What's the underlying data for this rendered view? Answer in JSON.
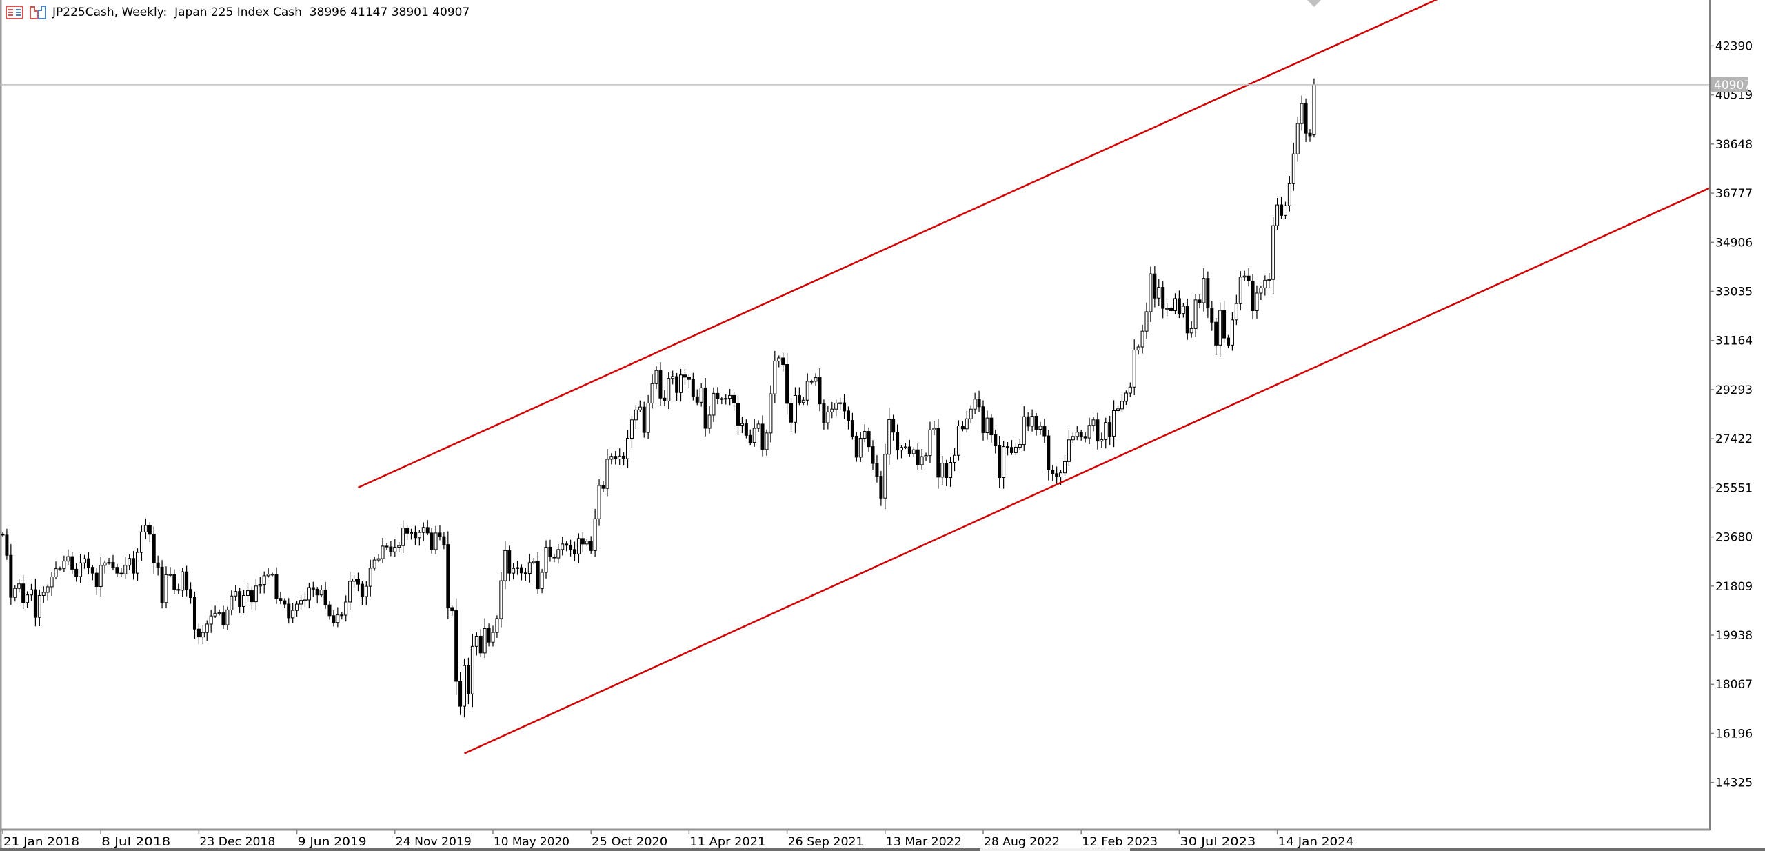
{
  "header": {
    "title": "JP225Cash, Weekly:  Japan 225 Index Cash",
    "open": "38996",
    "high": "41147",
    "low": "38901",
    "close": "40907",
    "icons": [
      "list-icon",
      "chart-window-icon"
    ]
  },
  "colors": {
    "background": "#ffffff",
    "bull_body": "#ffffff",
    "bear_body": "#000000",
    "candle_outline": "#000000",
    "trendline": "#d40000",
    "price_line": "#c0c0c0",
    "price_label_bg": "#b4b4b4",
    "axis": "#808080"
  },
  "chart_data": {
    "type": "candlestick",
    "symbol": "JP225Cash",
    "timeframe": "Weekly",
    "first_bar_date": "2018-01-21",
    "interval_days": 7,
    "ylim": [
      12530,
      44135
    ],
    "grid": false,
    "y_ticks": [
      "42390",
      "40519",
      "38648",
      "36777",
      "34906",
      "33035",
      "31164",
      "29293",
      "27422",
      "25551",
      "23680",
      "21809",
      "19938",
      "18067",
      "16196",
      "14325"
    ],
    "x_ticks": [
      {
        "label": "21 Jan 2018",
        "date": "2018-01-21"
      },
      {
        "label": "8 Jul 2018",
        "date": "2018-07-08"
      },
      {
        "label": "23 Dec 2018",
        "date": "2018-12-23"
      },
      {
        "label": "9 Jun 2019",
        "date": "2019-06-09"
      },
      {
        "label": "24 Nov 2019",
        "date": "2019-11-24"
      },
      {
        "label": "10 May 2020",
        "date": "2020-05-10"
      },
      {
        "label": "25 Oct 2020",
        "date": "2020-10-25"
      },
      {
        "label": "11 Apr 2021",
        "date": "2021-04-11"
      },
      {
        "label": "26 Sep 2021",
        "date": "2021-09-26"
      },
      {
        "label": "13 Mar 2022",
        "date": "2022-03-13"
      },
      {
        "label": "28 Aug 2022",
        "date": "2022-08-28"
      },
      {
        "label": "12 Feb 2023",
        "date": "2023-02-12"
      },
      {
        "label": "30 Jul 2023",
        "date": "2023-07-30"
      },
      {
        "label": "14 Jan 2024",
        "date": "2024-01-14"
      }
    ],
    "current_price": "40907",
    "last_bar": {
      "open": 38996,
      "high": 41147,
      "low": 38901,
      "close": 40907
    },
    "close": [
      23750,
      22980,
      21380,
      21720,
      21890,
      21180,
      21470,
      21670,
      20620,
      21450,
      21570,
      21780,
      22160,
      22470,
      22470,
      22760,
      22930,
      22450,
      22170,
      22690,
      22850,
      22520,
      22300,
      21790,
      22600,
      22690,
      22710,
      22520,
      22300,
      22270,
      22600,
      22860,
      22300,
      23090,
      23870,
      24120,
      23780,
      22690,
      22530,
      21180,
      22240,
      22250,
      21680,
      21650,
      22350,
      21680,
      21370,
      20170,
      19870,
      20040,
      20360,
      20670,
      20770,
      20790,
      20330,
      20900,
      21430,
      21600,
      21030,
      21450,
      21630,
      21210,
      21810,
      21870,
      22200,
      22260,
      22260,
      21340,
      21250,
      21120,
      20600,
      20880,
      21120,
      21260,
      21280,
      21750,
      21690,
      21470,
      21660,
      21090,
      20680,
      20420,
      20710,
      20700,
      21200,
      21990,
      22080,
      21880,
      21410,
      21800,
      22490,
      22800,
      22850,
      23330,
      23300,
      23110,
      23290,
      23350,
      24020,
      23820,
      23840,
      23650,
      23850,
      24040,
      23830,
      23200,
      23830,
      23690,
      23390,
      20990,
      20870,
      18180,
      17230,
      18780,
      17700,
      19510,
      19900,
      19260,
      20190,
      19670,
      20040,
      20570,
      22010,
      23160,
      22300,
      22480,
      22510,
      22310,
      22290,
      22700,
      22750,
      21710,
      22330,
      23290,
      22920,
      22880,
      23200,
      23410,
      23360,
      23200,
      23030,
      23620,
      23410,
      23520,
      23160,
      24370,
      25640,
      25530,
      26640,
      26750,
      26650,
      26760,
      26660,
      27440,
      28140,
      28520,
      28630,
      27660,
      28780,
      29520,
      30020,
      28970,
      28860,
      29720,
      29790,
      29180,
      29850,
      29770,
      29680,
      29020,
      28810,
      29360,
      27820,
      28320,
      29150,
      28940,
      28950,
      28960,
      29070,
      28780,
      27940,
      28000,
      27550,
      27280,
      27820,
      27980,
      27010,
      27640,
      29130,
      30380,
      30500,
      30250,
      28770,
      28050,
      29070,
      28800,
      28890,
      29610,
      29610,
      29750,
      28750,
      28030,
      28440,
      28550,
      28780,
      28790,
      28480,
      28120,
      27520,
      26720,
      27440,
      27700,
      27120,
      26480,
      25990,
      25160,
      26830,
      28150,
      27670,
      26990,
      27090,
      27110,
      26850,
      27000,
      26430,
      26740,
      26780,
      27760,
      27820,
      25960,
      26490,
      25940,
      26520,
      26790,
      27910,
      27800,
      28180,
      28550,
      28930,
      28640,
      27650,
      28210,
      27570,
      27150,
      25940,
      27120,
      27090,
      26890,
      27100,
      27200,
      28260,
      27900,
      28280,
      27780,
      27900,
      27530,
      26230,
      26090,
      25970,
      26120,
      26550,
      27380,
      27510,
      27670,
      27510,
      27450,
      27930,
      28140,
      27330,
      27390,
      28040,
      27520,
      28490,
      28560,
      28850,
      29160,
      29390,
      30800,
      30920,
      31520,
      32260,
      33700,
      32780,
      33190,
      32390,
      32390,
      32300,
      32760,
      32190,
      32470,
      31450,
      31620,
      32710,
      32600,
      33530,
      32400,
      31860,
      30990,
      32310,
      31260,
      30990,
      31950,
      32570,
      33580,
      33620,
      33430,
      32300,
      32970,
      33170,
      33460,
      33490,
      35540,
      36330,
      35930,
      36300,
      37140,
      38270,
      39430,
      40190,
      39060,
      38960,
      40907
    ],
    "trendlines": [
      {
        "name": "upper-channel",
        "points": [
          {
            "date": "2019-09-22",
            "price": 25560
          },
          {
            "date": "2024-03-17",
            "price": 42040
          }
        ],
        "extend_right": true
      },
      {
        "name": "lower-channel",
        "points": [
          {
            "date": "2020-03-22",
            "price": 15430
          },
          {
            "date": "2024-03-17",
            "price": 30130
          }
        ],
        "extend_right": true
      }
    ]
  }
}
